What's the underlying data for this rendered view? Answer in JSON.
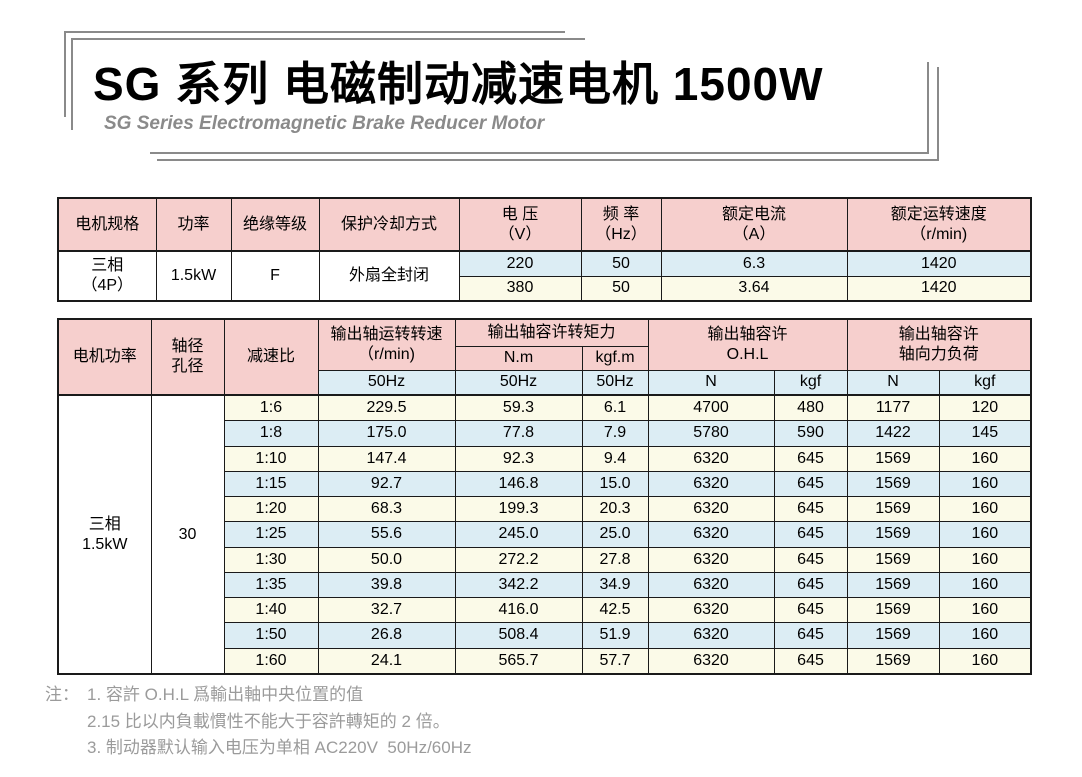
{
  "title": {
    "heading": "SG 系列 电磁制动减速电机 1500W",
    "subtitle": "SG Series Electromagnetic Brake Reducer Motor"
  },
  "colors": {
    "header_pink": "#f6cfcd",
    "row_blue": "#dcedf4",
    "row_cream": "#fbfae8",
    "table_border": "#1a1a1a",
    "frame_gray": "#8a8a8a",
    "note_gray": "#9b9b9b"
  },
  "spec_table": {
    "headers": {
      "model": "电机规格",
      "power": "功率",
      "insulation": "绝缘等级",
      "cooling": "保护冷却方式",
      "voltage": "电 压\n（V）",
      "frequency": "频 率\n（Hz）",
      "current": "额定电流\n（A）",
      "speed": "额定运转速度\n（r/min)"
    },
    "merged": {
      "model": "三相\n（4P）",
      "power": "1.5kW",
      "insulation": "F",
      "cooling": "外扇全封闭"
    },
    "rows": [
      {
        "voltage": "220",
        "frequency": "50",
        "current": "6.3",
        "speed": "1420",
        "tone": "blue"
      },
      {
        "voltage": "380",
        "frequency": "50",
        "current": "3.64",
        "speed": "1420",
        "tone": "cream"
      }
    ]
  },
  "perf_table": {
    "headers": {
      "motor_power": "电机功率",
      "shaft": "轴径\n孔径",
      "ratio": "减速比",
      "output_speed": "输出轴运转转速\n（r/min)",
      "torque": "输出轴容许转矩力",
      "torque_nm": "N.m",
      "torque_kgfm": "kgf.m",
      "ohl": "输出轴容许\nO.H.L",
      "axial": "输出轴容许\n轴向力负荷",
      "sub": [
        "50Hz",
        "50Hz",
        "50Hz",
        "N",
        "kgf",
        "N",
        "kgf"
      ]
    },
    "merged": {
      "motor_power": "三相\n1.5kW",
      "shaft": "30"
    },
    "rows": [
      {
        "ratio": "1:6",
        "speed": "229.5",
        "nm": "59.3",
        "kgfm": "6.1",
        "ohl_n": "4700",
        "ohl_kgf": "480",
        "ax_n": "1177",
        "ax_kgf": "120",
        "tone": "cream"
      },
      {
        "ratio": "1:8",
        "speed": "175.0",
        "nm": "77.8",
        "kgfm": "7.9",
        "ohl_n": "5780",
        "ohl_kgf": "590",
        "ax_n": "1422",
        "ax_kgf": "145",
        "tone": "blue"
      },
      {
        "ratio": "1:10",
        "speed": "147.4",
        "nm": "92.3",
        "kgfm": "9.4",
        "ohl_n": "6320",
        "ohl_kgf": "645",
        "ax_n": "1569",
        "ax_kgf": "160",
        "tone": "cream"
      },
      {
        "ratio": "1:15",
        "speed": "92.7",
        "nm": "146.8",
        "kgfm": "15.0",
        "ohl_n": "6320",
        "ohl_kgf": "645",
        "ax_n": "1569",
        "ax_kgf": "160",
        "tone": "blue"
      },
      {
        "ratio": "1:20",
        "speed": "68.3",
        "nm": "199.3",
        "kgfm": "20.3",
        "ohl_n": "6320",
        "ohl_kgf": "645",
        "ax_n": "1569",
        "ax_kgf": "160",
        "tone": "cream"
      },
      {
        "ratio": "1:25",
        "speed": "55.6",
        "nm": "245.0",
        "kgfm": "25.0",
        "ohl_n": "6320",
        "ohl_kgf": "645",
        "ax_n": "1569",
        "ax_kgf": "160",
        "tone": "blue"
      },
      {
        "ratio": "1:30",
        "speed": "50.0",
        "nm": "272.2",
        "kgfm": "27.8",
        "ohl_n": "6320",
        "ohl_kgf": "645",
        "ax_n": "1569",
        "ax_kgf": "160",
        "tone": "cream"
      },
      {
        "ratio": "1:35",
        "speed": "39.8",
        "nm": "342.2",
        "kgfm": "34.9",
        "ohl_n": "6320",
        "ohl_kgf": "645",
        "ax_n": "1569",
        "ax_kgf": "160",
        "tone": "blue"
      },
      {
        "ratio": "1:40",
        "speed": "32.7",
        "nm": "416.0",
        "kgfm": "42.5",
        "ohl_n": "6320",
        "ohl_kgf": "645",
        "ax_n": "1569",
        "ax_kgf": "160",
        "tone": "cream"
      },
      {
        "ratio": "1:50",
        "speed": "26.8",
        "nm": "508.4",
        "kgfm": "51.9",
        "ohl_n": "6320",
        "ohl_kgf": "645",
        "ax_n": "1569",
        "ax_kgf": "160",
        "tone": "blue"
      },
      {
        "ratio": "1:60",
        "speed": "24.1",
        "nm": "565.7",
        "kgfm": "57.7",
        "ohl_n": "6320",
        "ohl_kgf": "645",
        "ax_n": "1569",
        "ax_kgf": "160",
        "tone": "cream"
      }
    ]
  },
  "notes": {
    "label": "注：",
    "items": [
      "1. 容許 O.H.L 爲輸出軸中央位置的值",
      "2.15 比以内負載慣性不能大于容許轉矩的 2 倍。",
      "3. 制动器默认输入电压为单相 AC220V  50Hz/60Hz"
    ]
  }
}
